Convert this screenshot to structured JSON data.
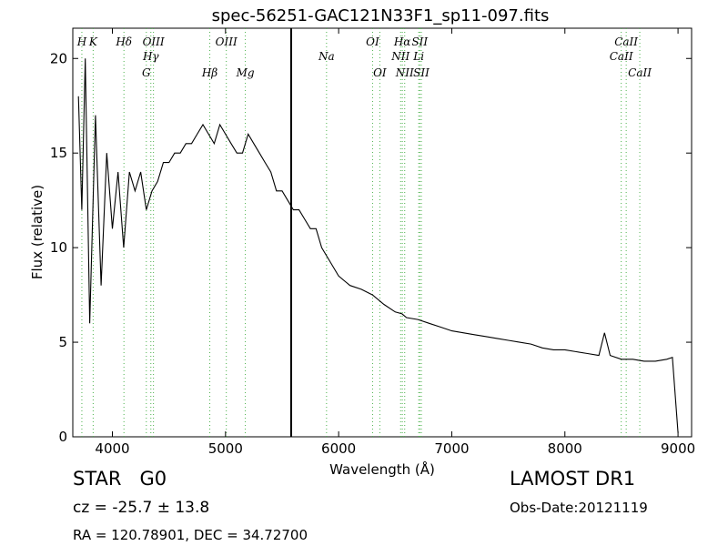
{
  "chart_data": {
    "type": "line",
    "title": "spec-56251-GAC121N33F1_sp11-097.fits",
    "xlabel": "Wavelength (Å)",
    "ylabel": "Flux (relative)",
    "xlim": [
      3650,
      9120
    ],
    "ylim": [
      0,
      21.6
    ],
    "xticks": [
      4000,
      5000,
      6000,
      7000,
      8000,
      9000
    ],
    "yticks": [
      0,
      5,
      10,
      15,
      20
    ],
    "grid": false,
    "marker_line_x": 5580,
    "series": [
      {
        "values_x": [
          3700,
          3730,
          3760,
          3800,
          3850,
          3900,
          3950,
          4000,
          4050,
          4100,
          4150,
          4200,
          4250,
          4300,
          4350,
          4400,
          4450,
          4500,
          4550,
          4600,
          4650,
          4700,
          4750,
          4800,
          4850,
          4900,
          4950,
          5000,
          5050,
          5100,
          5150,
          5200,
          5250,
          5300,
          5350,
          5400,
          5450,
          5500,
          5550,
          5600,
          5650,
          5700,
          5750,
          5800,
          5850,
          5900,
          5950,
          6000,
          6100,
          6200,
          6300,
          6400,
          6500,
          6560,
          6600,
          6700,
          6800,
          6900,
          7000,
          7100,
          7200,
          7300,
          7400,
          7500,
          7600,
          7700,
          7800,
          7900,
          8000,
          8100,
          8200,
          8300,
          8350,
          8400,
          8500,
          8600,
          8700,
          8800,
          8900,
          8950,
          9000
        ],
        "values_y": [
          18,
          12,
          20,
          6,
          17,
          8,
          15,
          11,
          14,
          10,
          14,
          13,
          14,
          12,
          13,
          13.5,
          14.5,
          14.5,
          15,
          15,
          15.5,
          15.5,
          16,
          16.5,
          16,
          15.5,
          16.5,
          16,
          15.5,
          15,
          15,
          16,
          15.5,
          15,
          14.5,
          14,
          13,
          13,
          12.5,
          12,
          12,
          11.5,
          11,
          11,
          10,
          9.5,
          9,
          8.5,
          8,
          7.8,
          7.5,
          7,
          6.6,
          6.5,
          6.3,
          6.2,
          6,
          5.8,
          5.6,
          5.5,
          5.4,
          5.3,
          5.2,
          5.1,
          5,
          4.9,
          4.7,
          4.6,
          4.6,
          4.5,
          4.4,
          4.3,
          5.5,
          4.3,
          4.1,
          4.1,
          4,
          4,
          4.1,
          4.2,
          0.2
        ]
      }
    ],
    "line_labels": [
      {
        "text": "H",
        "x": 3730,
        "row": 1
      },
      {
        "text": "K",
        "x": 3830,
        "row": 1
      },
      {
        "text": "Hδ",
        "x": 4102,
        "row": 1
      },
      {
        "text": "OIII",
        "x": 4363,
        "row": 1
      },
      {
        "text": "OIII",
        "x": 5007,
        "row": 1
      },
      {
        "text": "OI",
        "x": 6300,
        "row": 1
      },
      {
        "text": "Hα",
        "x": 6563,
        "row": 1
      },
      {
        "text": "SII",
        "x": 6717,
        "row": 1
      },
      {
        "text": "CaII",
        "x": 8542,
        "row": 1
      },
      {
        "text": "Hγ",
        "x": 4340,
        "row": 2
      },
      {
        "text": "Na",
        "x": 5893,
        "row": 2
      },
      {
        "text": "NII",
        "x": 6548,
        "row": 2
      },
      {
        "text": "Li",
        "x": 6708,
        "row": 2
      },
      {
        "text": "CaII",
        "x": 8498,
        "row": 2
      },
      {
        "text": "G",
        "x": 4300,
        "row": 3
      },
      {
        "text": "Hβ",
        "x": 4861,
        "row": 3
      },
      {
        "text": "Mg",
        "x": 5175,
        "row": 3
      },
      {
        "text": "OI",
        "x": 6364,
        "row": 3
      },
      {
        "text": "NII",
        "x": 6584,
        "row": 3
      },
      {
        "text": "SII",
        "x": 6731,
        "row": 3
      },
      {
        "text": "CaII",
        "x": 8662,
        "row": 3
      }
    ]
  },
  "info": {
    "object_class": "STAR",
    "subclass": "G0",
    "cz": "cz = -25.7  ± 13.8",
    "survey": "LAMOST DR1",
    "obs_date": "Obs-Date:20121119",
    "coords": "RA = 120.78901, DEC = 34.72700"
  },
  "colors": {
    "spectrum": "#000000",
    "line_markers": "#4cb24c",
    "background": "#ffffff"
  }
}
